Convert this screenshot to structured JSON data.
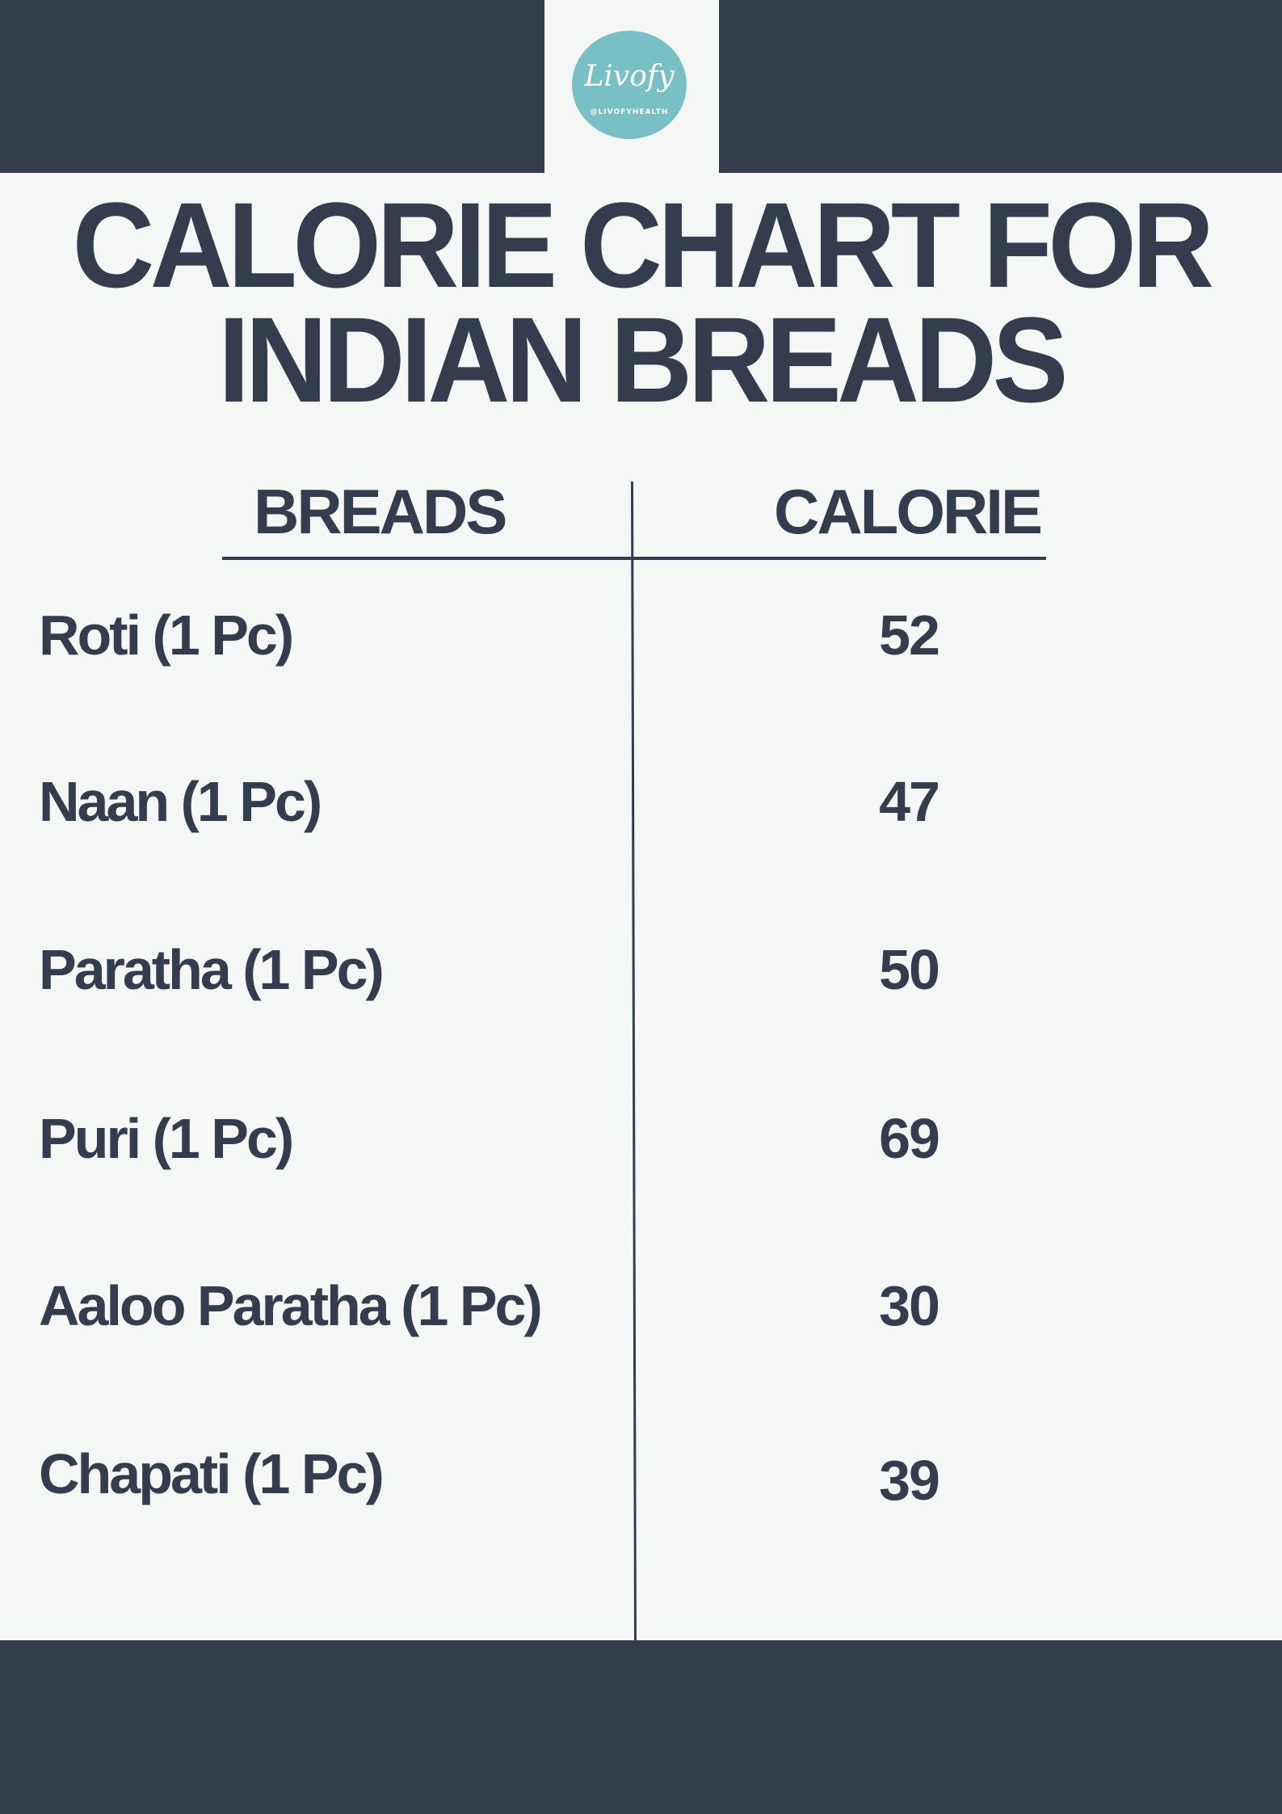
{
  "logo": {
    "word": "Livofy",
    "handle": "@LIVOFYHEALTH"
  },
  "title": {
    "line1": "CALORIE CHART FOR",
    "line2": "INDIAN BREADS"
  },
  "table": {
    "headers": {
      "breads": "BREADS",
      "calorie": "CALORIE"
    },
    "rows": [
      {
        "name": "Roti (1 Pc)",
        "calorie": "52"
      },
      {
        "name": "Naan (1 Pc)",
        "calorie": "47"
      },
      {
        "name": "Paratha (1 Pc)",
        "calorie": "50"
      },
      {
        "name": "Puri (1 Pc)",
        "calorie": "69"
      },
      {
        "name": "Aaloo Paratha (1 Pc)",
        "calorie": "30"
      },
      {
        "name": "Chapati (1 Pc)",
        "calorie": "39"
      }
    ]
  },
  "colors": {
    "navy": "#333d4e",
    "background": "#f5f6f6",
    "logo_teal": "#78bfc6"
  }
}
